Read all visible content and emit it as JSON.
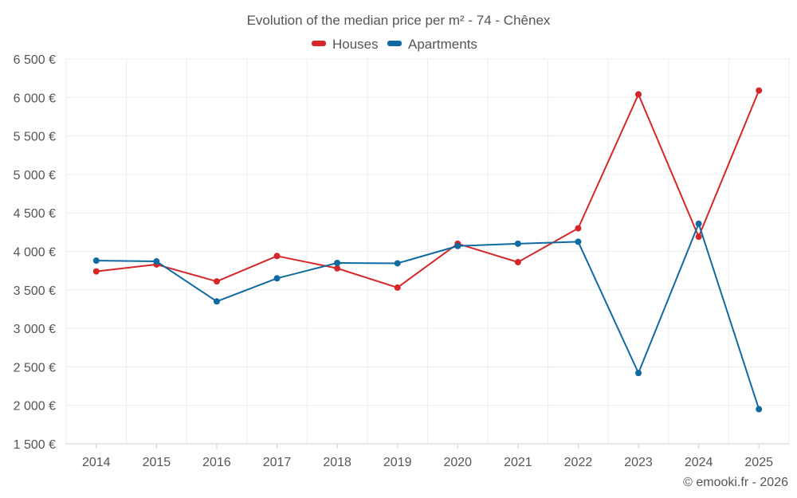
{
  "chart_data": {
    "type": "line",
    "title": "Evolution of the median price per m² - 74 - Chênex",
    "categories": [
      "2014",
      "2015",
      "2016",
      "2017",
      "2018",
      "2019",
      "2020",
      "2021",
      "2022",
      "2023",
      "2024",
      "2025"
    ],
    "series": [
      {
        "name": "Houses",
        "color": "#d62728",
        "values": [
          3740,
          3830,
          3610,
          3940,
          3780,
          3530,
          4100,
          3860,
          4300,
          6040,
          4190,
          6090
        ]
      },
      {
        "name": "Apartments",
        "color": "#0f6aa0",
        "values": [
          3880,
          3870,
          3350,
          3650,
          3850,
          3845,
          4070,
          4100,
          4125,
          2420,
          4360,
          1950
        ]
      }
    ],
    "ylim": [
      1500,
      6500
    ],
    "yticks": [
      1500,
      2000,
      2500,
      3000,
      3500,
      4000,
      4500,
      5000,
      5500,
      6000,
      6500
    ],
    "ytick_labels": [
      "1 500 €",
      "2 000 €",
      "2 500 €",
      "3 000 €",
      "3 500 €",
      "4 000 €",
      "4 500 €",
      "5 000 €",
      "5 500 €",
      "6 000 €",
      "6 500 €"
    ],
    "xlabel": "",
    "ylabel": "",
    "grid": true,
    "legend_position": "top-center"
  },
  "credit": "© emooki.fr - 2026"
}
